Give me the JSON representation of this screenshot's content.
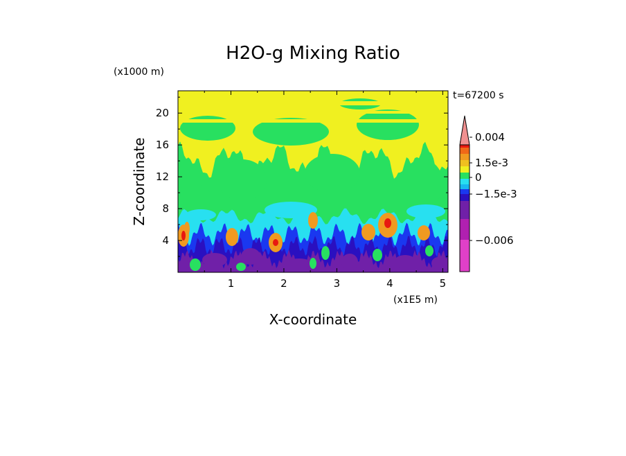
{
  "chart_data": {
    "type": "heatmap",
    "title": "H2O-g Mixing Ratio",
    "xlabel": "X-coordinate",
    "ylabel": "Z-coordinate",
    "x_unit": "(x1E5 m)",
    "y_unit": "(x1000 m)",
    "time_label": "t=67200 s",
    "xlim": [
      0,
      5.1
    ],
    "ylim": [
      0,
      22.8
    ],
    "x_ticks": [
      1,
      2,
      3,
      4,
      5
    ],
    "y_ticks": [
      4,
      8,
      12,
      16,
      20
    ],
    "colorbar": {
      "levels": [
        {
          "color": "#e040c8"
        },
        {
          "color": "#b020b0"
        },
        {
          "color": "#7020a8"
        },
        {
          "color": "#2a10c0"
        },
        {
          "color": "#1a38f0"
        },
        {
          "color": "#18b8f0"
        },
        {
          "color": "#28e0f0"
        },
        {
          "color": "#28e060"
        },
        {
          "color": "#f0f020"
        },
        {
          "color": "#f0c020"
        },
        {
          "color": "#f09a20"
        },
        {
          "color": "#f06818"
        },
        {
          "color": "#e81810"
        },
        {
          "color": "#f09090"
        }
      ],
      "labels": [
        {
          "text": "0.004",
          "value": 0.004
        },
        {
          "text": "1.5e-3",
          "value": 0.0015
        },
        {
          "text": "0",
          "value": 0
        },
        {
          "text": "−1.5e-3",
          "value": -0.0015
        },
        {
          "text": "−0.006",
          "value": -0.006
        }
      ]
    }
  }
}
